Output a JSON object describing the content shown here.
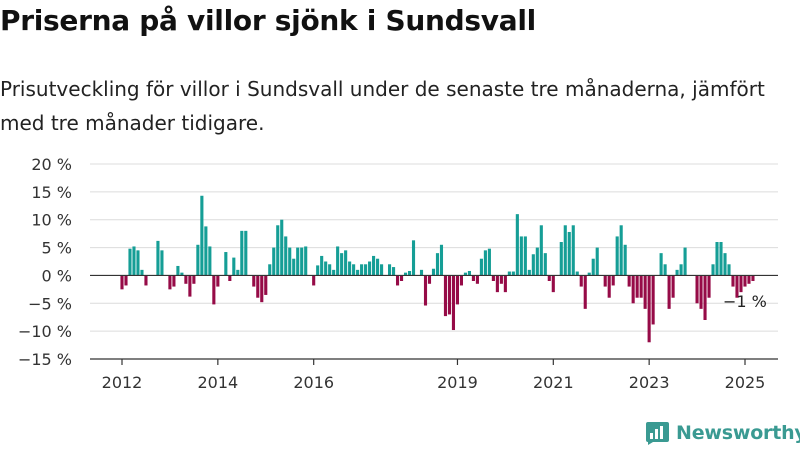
{
  "title": "Priserna på villor sjönk i Sundsvall",
  "subtitle": "Prisutveckling för villor i Sundsvall under de senaste tre månaderna, jämfört med tre månader tidigare.",
  "logo": {
    "text": "Newsworthy",
    "icon": "bar-chart-logo-icon"
  },
  "colors": {
    "positive": "#159e96",
    "negative": "#960b47",
    "grid": "#dcdcdc",
    "axis": "#333333",
    "logo": "#3a9a92"
  },
  "chart_data": {
    "type": "bar",
    "title": "",
    "xlabel": "",
    "ylabel": "",
    "ylim": [
      -15,
      20
    ],
    "yticks": [
      20,
      15,
      10,
      5,
      0,
      -5,
      -10,
      -15
    ],
    "ytick_labels": [
      "20 %",
      "15 %",
      "10 %",
      "5 %",
      "0 %",
      "−5 %",
      "−10 %",
      "−15 %"
    ],
    "xticks": [
      {
        "label": "2012",
        "x": 2012.0
      },
      {
        "label": "2014",
        "x": 2014.0
      },
      {
        "label": "2016",
        "x": 2016.0
      },
      {
        "label": "2019",
        "x": 2019.0
      },
      {
        "label": "2021",
        "x": 2021.0
      },
      {
        "label": "2023",
        "x": 2023.0
      },
      {
        "label": "2025",
        "x": 2025.0
      }
    ],
    "xlim": [
      2011.6,
      2025.5
    ],
    "grid": true,
    "annotation": {
      "text": "−1 %",
      "x": 2025.0,
      "y": -1
    },
    "start": 2012.0,
    "step": 0.08333,
    "values": [
      -2.5,
      -1.8,
      4.8,
      5.2,
      4.5,
      1,
      -1.8,
      0,
      0,
      6.2,
      4.5,
      0,
      -2.5,
      -2,
      1.7,
      0.5,
      -1.5,
      -3.8,
      -1.5,
      5.5,
      14.3,
      8.8,
      5.2,
      -5.2,
      -2,
      0,
      4.2,
      -1,
      3.2,
      1,
      8,
      8,
      0,
      -2,
      -4,
      -4.8,
      -3.5,
      2,
      5,
      9,
      10,
      7,
      5,
      3,
      5,
      5,
      5.2,
      0,
      -1.8,
      1.8,
      3.5,
      2.5,
      2,
      1,
      5.2,
      4,
      4.5,
      2.5,
      2,
      1,
      2,
      2,
      2.5,
      3.5,
      3,
      2,
      0,
      2,
      1.5,
      -1.8,
      -1,
      0.5,
      0.8,
      6.3,
      0,
      1,
      -5.4,
      -1.5,
      1.2,
      4,
      5.5,
      -7.3,
      -7,
      -9.8,
      -5.2,
      -1.8,
      0.5,
      0.8,
      -1,
      -1.5,
      3,
      4.5,
      4.8,
      -1,
      -3,
      -1.5,
      -3,
      0.7,
      0.7,
      11,
      7,
      7,
      1,
      3.8,
      5,
      9,
      4,
      -1,
      -3,
      0,
      6,
      9,
      7.8,
      9,
      0.7,
      -2,
      -6,
      0.5,
      3,
      5,
      0,
      -2,
      -4,
      -1.8,
      7,
      9,
      5.5,
      -2,
      -5,
      -4,
      -4,
      -6,
      -12,
      -8.8,
      0,
      4,
      2,
      -6,
      -4,
      1,
      2,
      5,
      0,
      0,
      -5,
      -6,
      -8,
      -4,
      2,
      6,
      6,
      4,
      2,
      -2,
      -4,
      -3,
      -2,
      -1.5,
      -1
    ]
  }
}
